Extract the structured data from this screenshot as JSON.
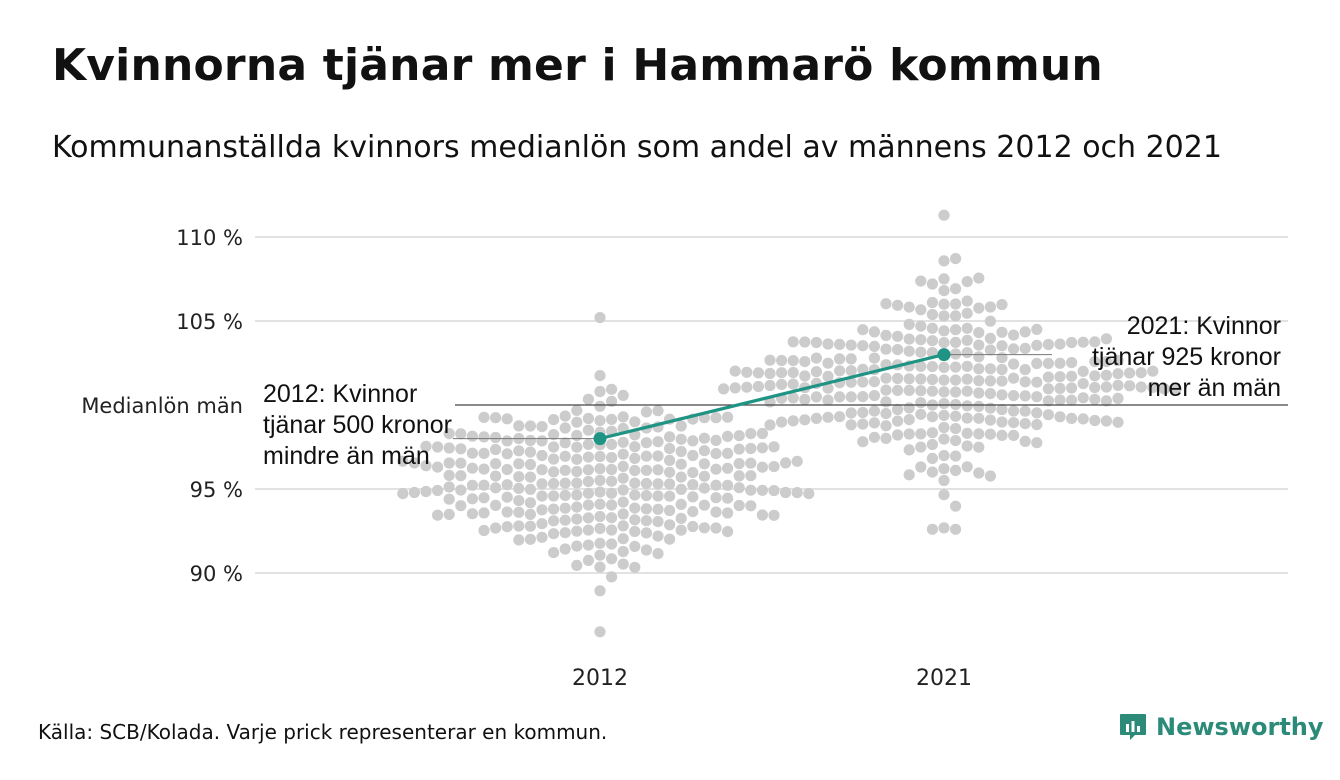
{
  "header": {
    "title": "Kvinnorna tjänar mer i Hammarö kommun",
    "subtitle": "Kommunanställda kvinnors medianlön som andel av männens 2012 och 2021"
  },
  "footer": {
    "source": "Källa: SCB/Kolada. Varje prick representerar en kommun.",
    "brand": "Newsworthy"
  },
  "colors": {
    "dot": "#cccccc",
    "highlight": "#1f9484",
    "grid": "#e2e2e2",
    "reference": "#444444",
    "brand": "#2b8a78"
  },
  "chart_data": {
    "type": "scatter",
    "subtype": "beeswarm",
    "categories": [
      "2012",
      "2021"
    ],
    "y_unit": "%",
    "yticks": [
      90,
      95,
      105,
      110
    ],
    "ytick_labels": [
      "90 %",
      "95 %",
      "105 %",
      "110 %"
    ],
    "ylim": [
      86.5,
      111.3
    ],
    "grid": true,
    "reference_line": {
      "value": 100,
      "label": "Medianlön män"
    },
    "distributions": [
      {
        "category": "2012",
        "min": 86.5,
        "max": 105.2,
        "center": 95.5
      },
      {
        "category": "2021",
        "min": 92.6,
        "max": 111.3,
        "center": 101.5
      }
    ],
    "highlight": {
      "name": "Hammarö",
      "points": [
        {
          "x": "2012",
          "y": 98.0,
          "label": "2012: Kvinnor tjänar 500 kronor mindre än män"
        },
        {
          "x": "2021",
          "y": 103.0,
          "label": "2021: Kvinnor tjänar 925 kronor mer än män"
        }
      ]
    }
  }
}
